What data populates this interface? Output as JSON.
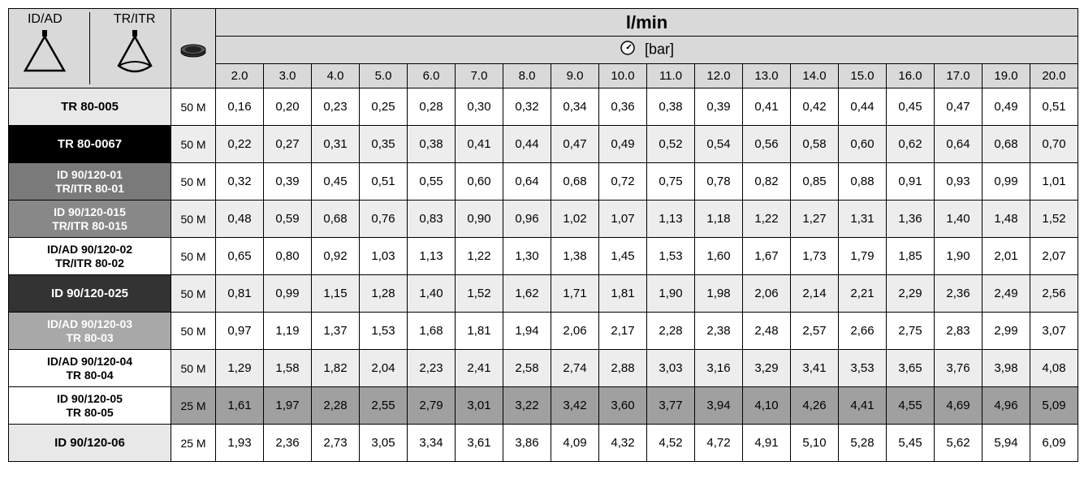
{
  "header": {
    "id_ad": "ID/AD",
    "tr_itr": "TR/ITR",
    "lmin": "l/min",
    "bar": "[bar]",
    "pressures": [
      "2.0",
      "3.0",
      "4.0",
      "5.0",
      "6.0",
      "7.0",
      "8.0",
      "9.0",
      "10.0",
      "11.0",
      "12.0",
      "13.0",
      "14.0",
      "15.0",
      "16.0",
      "17.0",
      "19.0",
      "20.0"
    ]
  },
  "rows": [
    {
      "label": "TR 80-005",
      "label_bg": "bg-ltgrey",
      "mesh": "50 M",
      "data_bg": "data-white",
      "vals": [
        "0,16",
        "0,20",
        "0,23",
        "0,25",
        "0,28",
        "0,30",
        "0,32",
        "0,34",
        "0,36",
        "0,38",
        "0,39",
        "0,41",
        "0,42",
        "0,44",
        "0,45",
        "0,47",
        "0,49",
        "0,51"
      ]
    },
    {
      "label": "TR 80-0067",
      "label_bg": "bg-black",
      "mesh": "50 M",
      "data_bg": "data-shade",
      "vals": [
        "0,22",
        "0,27",
        "0,31",
        "0,35",
        "0,38",
        "0,41",
        "0,44",
        "0,47",
        "0,49",
        "0,52",
        "0,54",
        "0,56",
        "0,58",
        "0,60",
        "0,62",
        "0,64",
        "0,68",
        "0,70"
      ]
    },
    {
      "label": "ID 90/120-01<br>TR/ITR 80-01",
      "label_bg": "bg-dgrey",
      "mesh": "50 M",
      "data_bg": "data-white",
      "vals": [
        "0,32",
        "0,39",
        "0,45",
        "0,51",
        "0,55",
        "0,60",
        "0,64",
        "0,68",
        "0,72",
        "0,75",
        "0,78",
        "0,82",
        "0,85",
        "0,88",
        "0,91",
        "0,93",
        "0,99",
        "1,01"
      ]
    },
    {
      "label": "ID 90/120-015<br>TR/ITR 80-015",
      "label_bg": "bg-mgrey",
      "mesh": "50 M",
      "data_bg": "data-shade",
      "vals": [
        "0,48",
        "0,59",
        "0,68",
        "0,76",
        "0,83",
        "0,90",
        "0,96",
        "1,02",
        "1,07",
        "1,13",
        "1,18",
        "1,22",
        "1,27",
        "1,31",
        "1,36",
        "1,40",
        "1,48",
        "1,52"
      ]
    },
    {
      "label": "ID/AD 90/120-02<br>TR/ITR 80-02",
      "label_bg": "bg-white",
      "mesh": "50 M",
      "data_bg": "data-white",
      "vals": [
        "0,65",
        "0,80",
        "0,92",
        "1,03",
        "1,13",
        "1,22",
        "1,30",
        "1,38",
        "1,45",
        "1,53",
        "1,60",
        "1,67",
        "1,73",
        "1,79",
        "1,85",
        "1,90",
        "2,01",
        "2,07"
      ]
    },
    {
      "label": "ID 90/120-025",
      "label_bg": "bg-vdark",
      "mesh": "50 M",
      "data_bg": "data-shade",
      "vals": [
        "0,81",
        "0,99",
        "1,15",
        "1,28",
        "1,40",
        "1,52",
        "1,62",
        "1,71",
        "1,81",
        "1,90",
        "1,98",
        "2,06",
        "2,14",
        "2,21",
        "2,29",
        "2,36",
        "2,49",
        "2,56"
      ]
    },
    {
      "label": "ID/AD 90/120-03<br>TR 80-03",
      "label_bg": "bg-grey2",
      "mesh": "50 M",
      "data_bg": "data-white",
      "vals": [
        "0,97",
        "1,19",
        "1,37",
        "1,53",
        "1,68",
        "1,81",
        "1,94",
        "2,06",
        "2,17",
        "2,28",
        "2,38",
        "2,48",
        "2,57",
        "2,66",
        "2,75",
        "2,83",
        "2,99",
        "3,07"
      ]
    },
    {
      "label": "ID/AD 90/120-04<br>TR 80-04",
      "label_bg": "bg-white",
      "mesh": "50 M",
      "data_bg": "data-shade",
      "vals": [
        "1,29",
        "1,58",
        "1,82",
        "2,04",
        "2,23",
        "2,41",
        "2,58",
        "2,74",
        "2,88",
        "3,03",
        "3,16",
        "3,29",
        "3,41",
        "3,53",
        "3,65",
        "3,76",
        "3,98",
        "4,08"
      ]
    },
    {
      "label": "ID 90/120-05<br>TR 80-05",
      "label_bg": "bg-white",
      "mesh": "25 M",
      "data_bg": "data-shade",
      "mesh_bg": "bg-grey3",
      "vals": [
        "1,61",
        "1,97",
        "2,28",
        "2,55",
        "2,79",
        "3,01",
        "3,22",
        "3,42",
        "3,60",
        "3,77",
        "3,94",
        "4,10",
        "4,26",
        "4,41",
        "4,55",
        "4,69",
        "4,96",
        "5,09"
      ]
    },
    {
      "label": "ID 90/120-06",
      "label_bg": "bg-ltgrey",
      "mesh": "25 M",
      "data_bg": "data-white",
      "vals": [
        "1,93",
        "2,36",
        "2,73",
        "3,05",
        "3,34",
        "3,61",
        "3,86",
        "4,09",
        "4,32",
        "4,52",
        "4,72",
        "4,91",
        "5,10",
        "5,28",
        "5,45",
        "5,62",
        "5,94",
        "6,09"
      ]
    }
  ],
  "style": {
    "border_color": "#000000",
    "header_bg": "#d9d9d9",
    "shade_bg": "#ededed",
    "font_family": "Arial"
  }
}
